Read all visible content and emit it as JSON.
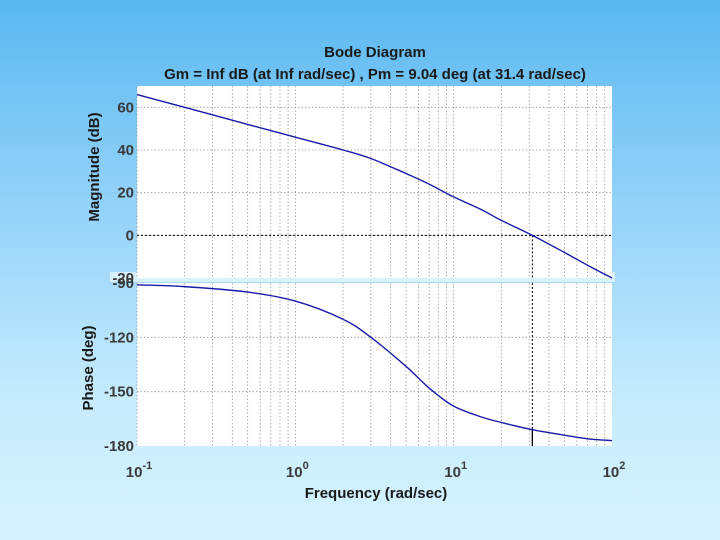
{
  "chart_data": {
    "type": "line",
    "title": "Bode Diagram",
    "subtitle": "Gm = Inf dB (at Inf rad/sec) ,  Pm = 9.04 deg (at 31.4 rad/sec)",
    "xlabel": "Frequency  (rad/sec)",
    "xscale": "log",
    "xlim": [
      0.1,
      100
    ],
    "x_ticks": [
      {
        "base": "10",
        "exp": "-1"
      },
      {
        "base": "10",
        "exp": "0"
      },
      {
        "base": "10",
        "exp": "1"
      },
      {
        "base": "10",
        "exp": "2"
      }
    ],
    "grid": true,
    "crossover_frequency": 31.4,
    "magnitude": {
      "ylabel": "Magnitude (dB)",
      "ylim": [
        -20,
        70
      ],
      "yticks": [
        "60",
        "40",
        "20",
        "0",
        "-20"
      ],
      "ytick_values": [
        60,
        40,
        20,
        0,
        -20
      ],
      "series": [
        {
          "name": "Magnitude",
          "x": [
            0.1,
            0.2,
            0.5,
            1,
            2,
            3,
            5,
            7,
            10,
            15,
            20,
            31.4,
            50,
            70,
            100
          ],
          "y": [
            66,
            60,
            52,
            46,
            40,
            36,
            29,
            24,
            18,
            12,
            7,
            0,
            -8,
            -14,
            -20
          ]
        }
      ],
      "marker_y": 0
    },
    "phase": {
      "ylabel": "Phase (deg)",
      "ylim": [
        -180,
        -90
      ],
      "yticks": [
        "-90",
        "-120",
        "-150",
        "-180"
      ],
      "ytick_values": [
        -90,
        -120,
        -150,
        -180
      ],
      "series": [
        {
          "name": "Phase",
          "x": [
            0.1,
            0.2,
            0.5,
            1,
            2,
            3,
            5,
            7,
            10,
            15,
            20,
            31.4,
            50,
            70,
            100
          ],
          "y": [
            -91,
            -92,
            -95,
            -100,
            -110,
            -120,
            -136,
            -148,
            -158,
            -164,
            -167,
            -171,
            -174,
            -176,
            -177
          ]
        }
      ],
      "marker_y": -171
    }
  }
}
